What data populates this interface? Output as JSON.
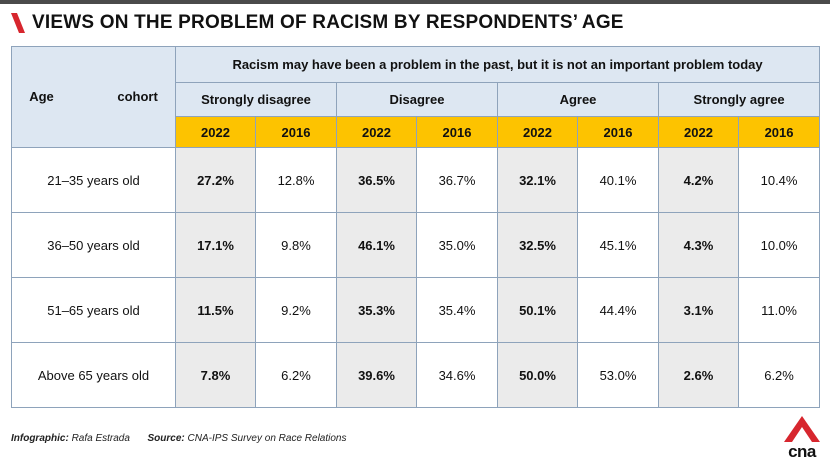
{
  "title": "VIEWS ON THE PROBLEM OF RACISM BY RESPONDENTS’ AGE",
  "colors": {
    "accent_red": "#d7262e",
    "year_highlight": "#fdc300",
    "header_blue": "#dde7f2",
    "shade_2022": "#ebebeb"
  },
  "table": {
    "age_header": "Age cohort",
    "question": "Racism may have been a problem in the past, but it is not an important problem today",
    "responses": [
      "Strongly disagree",
      "Disagree",
      "Agree",
      "Strongly agree"
    ],
    "years": [
      "2022",
      "2016"
    ]
  },
  "chart_data": {
    "type": "table",
    "title": "VIEWS ON THE PROBLEM OF RACISM BY RESPONDENTS’ AGE",
    "question": "Racism may have been a problem in the past, but it is not an important problem today",
    "columns": [
      "Age cohort",
      "Strongly disagree 2022",
      "Strongly disagree 2016",
      "Disagree 2022",
      "Disagree 2016",
      "Agree 2022",
      "Agree 2016",
      "Strongly agree 2022",
      "Strongly agree 2016"
    ],
    "rows": [
      [
        "21–35 years old",
        "27.2%",
        "12.8%",
        "36.5%",
        "36.7%",
        "32.1%",
        "40.1%",
        "4.2%",
        "10.4%"
      ],
      [
        "36–50 years old",
        "17.1%",
        "9.8%",
        "46.1%",
        "35.0%",
        "32.5%",
        "45.1%",
        "4.3%",
        "10.0%"
      ],
      [
        "51–65 years old",
        "11.5%",
        "9.2%",
        "35.3%",
        "35.4%",
        "50.1%",
        "44.4%",
        "3.1%",
        "11.0%"
      ],
      [
        "Above 65 years old",
        "7.8%",
        "6.2%",
        "39.6%",
        "34.6%",
        "50.0%",
        "53.0%",
        "2.6%",
        "6.2%"
      ]
    ]
  },
  "footer": {
    "infographic_label": "Infographic:",
    "infographic_value": "Rafa Estrada",
    "source_label": "Source:",
    "source_value": "CNA-IPS Survey on Race Relations"
  },
  "logo": {
    "text": "cna",
    "icon": "cna-logo-icon"
  }
}
